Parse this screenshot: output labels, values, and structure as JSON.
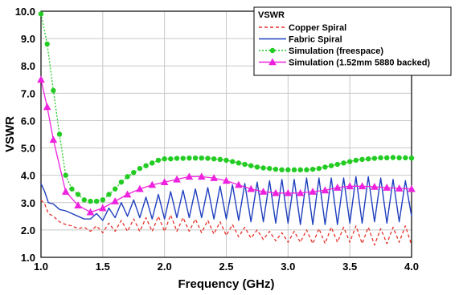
{
  "chart_data": {
    "type": "line",
    "xlabel": "Frequency (GHz)",
    "ylabel": "VSWR",
    "xlim": [
      1.0,
      4.0
    ],
    "ylim": [
      1.0,
      10.0
    ],
    "xticks": [
      1.0,
      1.5,
      2.0,
      2.5,
      3.0,
      3.5,
      4.0
    ],
    "xtick_labels": [
      "1.0",
      "1.5",
      "2.0",
      "2.5",
      "3.0",
      "3.5",
      "4.0"
    ],
    "yticks": [
      1.0,
      2.0,
      3.0,
      4.0,
      5.0,
      6.0,
      7.0,
      8.0,
      9.0,
      10.0
    ],
    "ytick_labels": [
      "1.0",
      "2.0",
      "3.0",
      "4.0",
      "5.0",
      "6.0",
      "7.0",
      "8.0",
      "9.0",
      "10.0"
    ],
    "grid": true,
    "legend": {
      "title": "VSWR",
      "position": "top-right"
    },
    "series": [
      {
        "name": "Copper Spiral",
        "color": "#e8312a",
        "style": "dashed",
        "x": [
          1.0,
          1.03,
          1.06,
          1.1,
          1.15,
          1.2,
          1.25,
          1.3,
          1.35,
          1.4,
          1.45,
          1.5,
          1.55,
          1.6,
          1.65,
          1.7,
          1.75,
          1.8,
          1.85,
          1.9,
          1.95,
          2.0,
          2.05,
          2.1,
          2.15,
          2.2,
          2.25,
          2.3,
          2.35,
          2.4,
          2.45,
          2.5,
          2.55,
          2.6,
          2.65,
          2.7,
          2.75,
          2.8,
          2.85,
          2.9,
          2.95,
          3.0,
          3.05,
          3.1,
          3.15,
          3.2,
          3.25,
          3.3,
          3.35,
          3.4,
          3.45,
          3.5,
          3.55,
          3.6,
          3.65,
          3.7,
          3.75,
          3.8,
          3.85,
          3.9,
          3.95,
          4.0
        ],
        "values": [
          3.1,
          2.95,
          2.6,
          2.5,
          2.3,
          2.2,
          2.15,
          2.05,
          2.1,
          1.95,
          2.15,
          1.9,
          2.25,
          1.95,
          2.35,
          1.95,
          2.4,
          1.95,
          2.45,
          1.95,
          2.5,
          1.95,
          2.55,
          1.95,
          2.45,
          1.95,
          2.4,
          1.9,
          2.35,
          1.85,
          2.3,
          1.8,
          2.2,
          1.75,
          2.1,
          1.7,
          2.0,
          1.65,
          1.95,
          1.6,
          1.9,
          1.55,
          1.95,
          1.55,
          2.0,
          1.5,
          2.05,
          1.5,
          2.1,
          1.55,
          2.1,
          1.55,
          2.15,
          1.5,
          2.1,
          1.45,
          2.05,
          1.5,
          2.1,
          1.55,
          2.15,
          1.45
        ]
      },
      {
        "name": "Fabric Spiral",
        "color": "#1f3fbf",
        "style": "solid",
        "x": [
          1.0,
          1.03,
          1.06,
          1.1,
          1.15,
          1.2,
          1.25,
          1.3,
          1.35,
          1.4,
          1.45,
          1.5,
          1.55,
          1.6,
          1.65,
          1.7,
          1.75,
          1.8,
          1.85,
          1.9,
          1.95,
          2.0,
          2.05,
          2.1,
          2.15,
          2.2,
          2.25,
          2.3,
          2.35,
          2.4,
          2.45,
          2.5,
          2.55,
          2.6,
          2.65,
          2.7,
          2.75,
          2.8,
          2.85,
          2.9,
          2.95,
          3.0,
          3.05,
          3.1,
          3.15,
          3.2,
          3.25,
          3.3,
          3.35,
          3.4,
          3.45,
          3.5,
          3.55,
          3.6,
          3.65,
          3.7,
          3.75,
          3.8,
          3.85,
          3.9,
          3.95,
          4.0
        ],
        "values": [
          3.7,
          3.4,
          3.0,
          2.95,
          2.75,
          2.7,
          2.6,
          2.5,
          2.4,
          2.4,
          2.6,
          2.35,
          2.8,
          2.45,
          3.0,
          2.5,
          3.1,
          2.45,
          3.2,
          2.4,
          3.3,
          2.4,
          3.4,
          2.45,
          3.45,
          2.45,
          3.5,
          2.45,
          3.55,
          2.4,
          3.6,
          2.4,
          3.65,
          2.35,
          3.7,
          2.3,
          3.75,
          2.3,
          3.8,
          2.25,
          3.85,
          2.25,
          3.85,
          2.2,
          3.9,
          2.2,
          3.9,
          2.2,
          3.9,
          2.2,
          3.9,
          2.25,
          3.95,
          2.25,
          3.95,
          2.3,
          3.9,
          2.25,
          3.85,
          2.3,
          3.8,
          2.5
        ]
      },
      {
        "name": "Simulation (freespace)",
        "color": "#22cc22",
        "style": "dotted",
        "marker": "circle",
        "x": [
          1.0,
          1.05,
          1.1,
          1.15,
          1.2,
          1.25,
          1.3,
          1.35,
          1.4,
          1.45,
          1.5,
          1.55,
          1.6,
          1.65,
          1.7,
          1.75,
          1.8,
          1.85,
          1.9,
          1.95,
          2.0,
          2.05,
          2.1,
          2.15,
          2.2,
          2.25,
          2.3,
          2.35,
          2.4,
          2.45,
          2.5,
          2.55,
          2.6,
          2.65,
          2.7,
          2.75,
          2.8,
          2.85,
          2.9,
          2.95,
          3.0,
          3.05,
          3.1,
          3.15,
          3.2,
          3.25,
          3.3,
          3.35,
          3.4,
          3.45,
          3.5,
          3.55,
          3.6,
          3.65,
          3.7,
          3.75,
          3.8,
          3.85,
          3.9,
          3.95,
          4.0
        ],
        "values": [
          9.9,
          8.8,
          7.1,
          5.5,
          4.0,
          3.5,
          3.3,
          3.1,
          3.05,
          3.05,
          3.1,
          3.3,
          3.5,
          3.75,
          3.95,
          4.1,
          4.25,
          4.35,
          4.45,
          4.55,
          4.6,
          4.6,
          4.62,
          4.62,
          4.63,
          4.63,
          4.63,
          4.62,
          4.6,
          4.58,
          4.55,
          4.5,
          4.45,
          4.4,
          4.35,
          4.3,
          4.27,
          4.25,
          4.22,
          4.2,
          4.2,
          4.2,
          4.2,
          4.2,
          4.22,
          4.25,
          4.3,
          4.35,
          4.4,
          4.45,
          4.5,
          4.55,
          4.58,
          4.6,
          4.62,
          4.64,
          4.64,
          4.65,
          4.64,
          4.64,
          4.63
        ]
      },
      {
        "name": "Simulation (1.52mm 5880 backed)",
        "color": "#ee22dd",
        "style": "solid",
        "marker": "triangle",
        "x": [
          1.0,
          1.05,
          1.1,
          1.2,
          1.3,
          1.4,
          1.5,
          1.6,
          1.7,
          1.8,
          1.9,
          2.0,
          2.1,
          2.2,
          2.3,
          2.4,
          2.5,
          2.6,
          2.7,
          2.8,
          2.9,
          3.0,
          3.1,
          3.2,
          3.3,
          3.4,
          3.5,
          3.6,
          3.7,
          3.8,
          3.9,
          4.0
        ],
        "values": [
          7.5,
          6.5,
          5.3,
          3.4,
          2.9,
          2.65,
          2.8,
          3.05,
          3.3,
          3.5,
          3.65,
          3.75,
          3.85,
          3.95,
          3.95,
          3.9,
          3.8,
          3.65,
          3.5,
          3.4,
          3.35,
          3.35,
          3.35,
          3.4,
          3.45,
          3.55,
          3.6,
          3.6,
          3.58,
          3.55,
          3.52,
          3.5
        ]
      }
    ]
  }
}
